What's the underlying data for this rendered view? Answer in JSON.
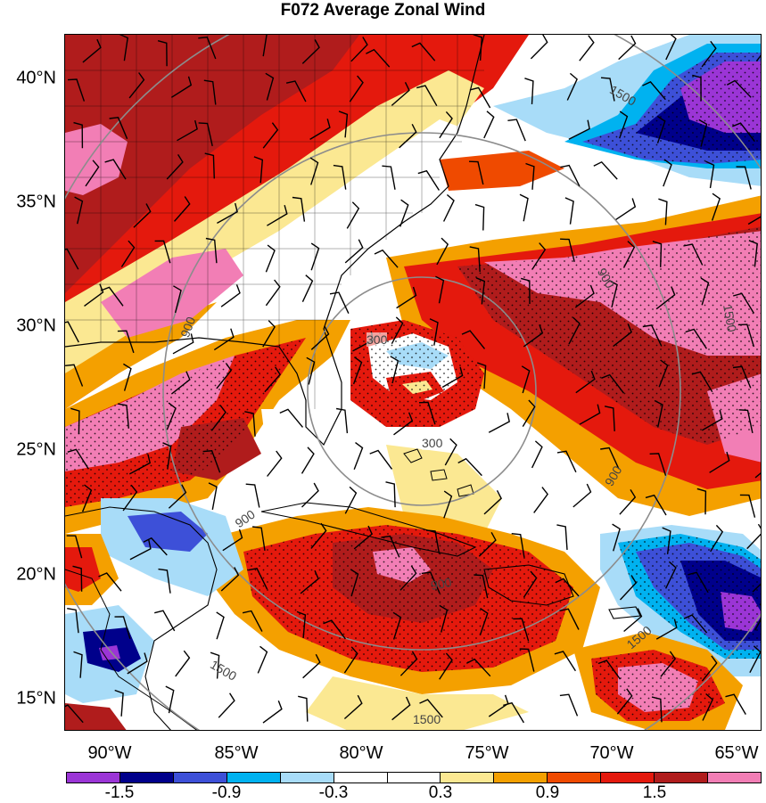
{
  "title": "F072 Average Zonal Wind",
  "latitude_labels": [
    "40°N",
    "35°N",
    "30°N",
    "25°N",
    "20°N",
    "15°N"
  ],
  "longitude_labels": [
    "90°W",
    "85°W",
    "80°W",
    "75°W",
    "70°W",
    "65°W"
  ],
  "range_ring_labels": [
    "300",
    "300",
    "900",
    "900",
    "900",
    "900",
    "900",
    "1500",
    "1500",
    "1500",
    "1500"
  ],
  "colorbar": {
    "labels": [
      "-1.5",
      "-0.9",
      "-0.3",
      "0.3",
      "0.9",
      "1.5"
    ],
    "colors": [
      "#9b35d6",
      "#00008b",
      "#3d50d8",
      "#00b2f0",
      "#a8dcf8",
      "#ffffff",
      "#ffffff",
      "#fbe892",
      "#f4a000",
      "#ef4a00",
      "#e4190d",
      "#b01c1c",
      "#f27eb5"
    ]
  },
  "map": {
    "extent_lon": [
      -92.3,
      -64.7
    ],
    "extent_lat": [
      14.0,
      41.7
    ],
    "storm_center": {
      "lon": -76.5,
      "lat": 27.0
    },
    "ring_radii_km": [
      300,
      900,
      1500
    ],
    "field_description_colors": {
      "strong_negative": "#9b35d6",
      "negative": "#3d50d8",
      "weak_negative": "#a8dcf8",
      "neutral": "#ffffff",
      "weak_positive": "#fbe892",
      "positive": "#f4a000",
      "strong_positive": "#e4190d",
      "very_strong_positive": "#f27eb5"
    }
  }
}
